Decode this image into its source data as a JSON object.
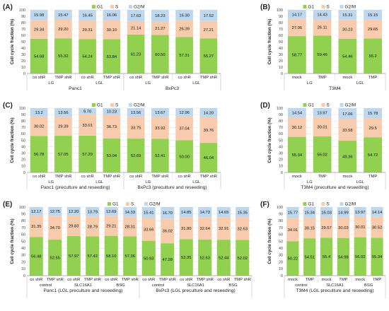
{
  "colors": {
    "G1": "#92d050",
    "S": "#f8cbad",
    "G2/M": "#bdd7ee"
  },
  "chart_data": [
    {
      "panel": "(A)",
      "type": "bar",
      "stacked": true,
      "ylabel": "Cell cycle fraction (%)",
      "ylim": [
        0,
        100
      ],
      "yticks": [
        "0",
        "10",
        "20",
        "30",
        "40",
        "50",
        "60",
        "70",
        "80",
        "90",
        "100"
      ],
      "legend": [
        "G1",
        "S",
        "G2/M"
      ],
      "categories": [
        "co shR",
        "TMP shR",
        "co shR",
        "TMP shR",
        "co shR",
        "TMP shR",
        "co shR",
        "TMP shR"
      ],
      "series": [
        {
          "name": "G1",
          "values": [
            54.68,
            55.32,
            54.24,
            53.84,
            61.23,
            60.5,
            57.31,
            55.27
          ]
        },
        {
          "name": "S",
          "values": [
            29.34,
            29.2,
            29.31,
            30.1,
            21.14,
            21.27,
            26.39,
            27.21
          ]
        },
        {
          "name": "G2/M",
          "values": [
            15.98,
            15.47,
            16.45,
            16.06,
            17.63,
            18.23,
            16.3,
            17.52
          ]
        }
      ],
      "labels": {
        "G1": [
          "54.68",
          "55.32",
          "54.24",
          "53.84",
          "61.23",
          "60.50",
          "57.31",
          "55.27"
        ],
        "S": [
          "29.34",
          "29.20",
          "29.31",
          "30.10",
          "21.14",
          "21.27",
          "26.39",
          "27.21"
        ],
        "G2/M": [
          "15.98",
          "15.47",
          "16.45",
          "16.06",
          "17.63",
          "18.23",
          "16.30",
          "17.52"
        ]
      },
      "subgroups": [
        "LG",
        "LGL",
        "LG",
        "LGL"
      ],
      "groups": [
        "Panc1",
        "BxPc3"
      ]
    },
    {
      "panel": "(B)",
      "type": "bar",
      "stacked": true,
      "ylabel": "Cell cycle fraction (%)",
      "ylim": [
        0,
        100
      ],
      "yticks": [
        "0",
        "10",
        "20",
        "30",
        "40",
        "50",
        "60",
        "70",
        "80",
        "90",
        "100"
      ],
      "legend": [
        "G1",
        "S",
        "G2/M"
      ],
      "categories": [
        "mock",
        "TMP",
        "mock",
        "TMP"
      ],
      "series": [
        {
          "name": "G1",
          "values": [
            58.77,
            59.46,
            54.46,
            55.2
          ]
        },
        {
          "name": "S",
          "values": [
            27.06,
            26.11,
            30.23,
            29.65
          ]
        },
        {
          "name": "G2/M",
          "values": [
            14.17,
            14.43,
            15.31,
            15.15
          ]
        }
      ],
      "labels": {
        "G1": [
          "58.77",
          "59.46",
          "54.46",
          "55.2"
        ],
        "S": [
          "27.06",
          "26.11",
          "30.23",
          "29.65"
        ],
        "G2/M": [
          "14.17",
          "14.43",
          "15.31",
          "15.15"
        ]
      },
      "subgroups": [
        "LG",
        "LGL"
      ],
      "groups": [
        "T3M4"
      ]
    },
    {
      "panel": "(C)",
      "type": "bar",
      "stacked": true,
      "ylabel": "Cell cycle fraction (%)",
      "ylim": [
        0,
        100
      ],
      "yticks": [
        "0",
        "10",
        "20",
        "30",
        "40",
        "50",
        "60",
        "70",
        "80",
        "90",
        "100"
      ],
      "legend": [
        "G1",
        "S",
        "G2/M"
      ],
      "categories": [
        "co shR",
        "TMP shR",
        "co shR",
        "TMP shR",
        "co shR",
        "TMP shR",
        "co shR",
        "TMP shR"
      ],
      "series": [
        {
          "name": "G1",
          "values": [
            56.78,
            57.05,
            57.29,
            53.04,
            52.69,
            52.41,
            50.0,
            46.04
          ]
        },
        {
          "name": "S",
          "values": [
            30.02,
            29.39,
            33.01,
            36.73,
            33.75,
            33.92,
            37.04,
            39.76
          ]
        },
        {
          "name": "G2/M",
          "values": [
            13.2,
            13.56,
            9.7,
            10.23,
            13.56,
            13.67,
            12.96,
            14.2
          ]
        }
      ],
      "labels": {
        "G1": [
          "56.78",
          "57.05",
          "57.29",
          "53.04",
          "52.69",
          "52.41",
          "50.00",
          "46.04"
        ],
        "S": [
          "30.02",
          "29.39",
          "33.01",
          "36.73",
          "33.75",
          "33.92",
          "37.04",
          "39.76"
        ],
        "G2/M": [
          "13.2",
          "13.56",
          "9.70",
          "10.23",
          "13.56",
          "13.67",
          "12.96",
          "14.20"
        ]
      },
      "subgroups": [
        "LG",
        "LGL",
        "LG",
        "LGL"
      ],
      "groups": [
        "Panc1 (preculture and reseeding)",
        "BxPc3 (preculture and reseeding)"
      ]
    },
    {
      "panel": "(D)",
      "type": "bar",
      "stacked": true,
      "ylabel": "Cell cycle fraction (%)",
      "ylim": [
        0,
        100
      ],
      "yticks": [
        "0",
        "10",
        "20",
        "30",
        "40",
        "50",
        "60",
        "70",
        "80",
        "90",
        "100"
      ],
      "legend": [
        "G1",
        "S",
        "G2/M"
      ],
      "categories": [
        "mock",
        "TMP",
        "mock",
        "TMP"
      ],
      "series": [
        {
          "name": "G1",
          "values": [
            55.34,
            56.02,
            49.36,
            54.72
          ]
        },
        {
          "name": "S",
          "values": [
            30.12,
            30.01,
            33.58,
            29.5
          ]
        },
        {
          "name": "G2/M",
          "values": [
            14.54,
            13.97,
            17.06,
            15.78
          ]
        }
      ],
      "labels": {
        "G1": [
          "55.34",
          "56.02",
          "49.36",
          "54.72"
        ],
        "S": [
          "30.12",
          "30.01",
          "33.58",
          "29.5"
        ],
        "G2/M": [
          "14.54",
          "13.97",
          "17.06",
          "15.78"
        ]
      },
      "subgroups": [
        "LG",
        "LGL"
      ],
      "groups": [
        "T3M4 (preculture and reseeding)"
      ]
    },
    {
      "panel": "(E)",
      "type": "bar",
      "stacked": true,
      "ylabel": "Cell cycle fraction (%)",
      "ylim": [
        0,
        100
      ],
      "yticks": [
        "0",
        "10",
        "20",
        "30",
        "40",
        "50",
        "60",
        "70",
        "80",
        "90",
        "100"
      ],
      "legend": [
        "G1",
        "S",
        "G2/M"
      ],
      "categories": [
        "co shR",
        "TMP shR",
        "co shR",
        "TMP shR",
        "co shR",
        "TMP shR",
        "co shR",
        "TMP shR",
        "co shR",
        "TMP shR",
        "co shR",
        "TMP shR"
      ],
      "series": [
        {
          "name": "G1",
          "values": [
            56.48,
            52.55,
            57.97,
            57.42,
            58.1,
            57.36,
            50.93,
            47.28,
            53.35,
            52.63,
            52.44,
            52.02
          ]
        },
        {
          "name": "S",
          "values": [
            31.35,
            34.7,
            29.83,
            28.79,
            29.21,
            28.31,
            33.66,
            36.02,
            31.8,
            32.64,
            32.91,
            32.63
          ]
        },
        {
          "name": "G2/M",
          "values": [
            12.17,
            12.75,
            12.2,
            13.79,
            12.69,
            14.33,
            15.41,
            16.7,
            14.85,
            14.73,
            14.65,
            15.35
          ]
        }
      ],
      "labels": {
        "G1": [
          "56.48",
          "52.55",
          "57.97",
          "57.42",
          "58.10",
          "57.36",
          "50.93",
          "47.28",
          "53.35",
          "52.63",
          "52.44",
          "52.02"
        ],
        "S": [
          "31.35",
          "34.70",
          "29.83",
          "28.79",
          "29.21",
          "28.31",
          "33.66",
          "36.02",
          "31.80",
          "32.64",
          "32.91",
          "32.63"
        ],
        "G2/M": [
          "12.17",
          "12.75",
          "12.20",
          "13.79",
          "12.69",
          "14.33",
          "15.41",
          "16.70",
          "14.85",
          "14.73",
          "14.65",
          "15.35"
        ]
      },
      "subgroups": [
        "control",
        "SLC16A1",
        "BSG",
        "control",
        "SLC16A1",
        "BSG"
      ],
      "groups": [
        "Panc1 (LGL preculture and reseeding)",
        "BxPc3 (LGL preculture and reseeding)"
      ]
    },
    {
      "panel": "(F)",
      "type": "bar",
      "stacked": true,
      "ylabel": "Cell cycle fraction (%)",
      "ylim": [
        0,
        100
      ],
      "yticks": [
        "0",
        "10",
        "20",
        "30",
        "40",
        "50",
        "60",
        "70",
        "80",
        "90",
        "100"
      ],
      "legend": [
        "G1",
        "S",
        "G2/M"
      ],
      "categories": [
        "mock",
        "TMP",
        "mock",
        "TMP",
        "mock",
        "TMP"
      ],
      "series": [
        {
          "name": "G1",
          "values": [
            50.22,
            54.51,
            55.4,
            54.98,
            56.02,
            55.34
          ]
        },
        {
          "name": "S",
          "values": [
            34.01,
            30.15,
            29.57,
            30.03,
            30.01,
            30.52
          ]
        },
        {
          "name": "G2/M",
          "values": [
            15.77,
            15.34,
            15.03,
            14.99,
            13.97,
            14.14
          ]
        }
      ],
      "labels": {
        "G1": [
          "50.22",
          "54.51",
          "55.4",
          "54.98",
          "56.02",
          "55.34"
        ],
        "S": [
          "34.01",
          "30.15",
          "29.57",
          "30.03",
          "30.01",
          "30.52"
        ],
        "G2/M": [
          "15.77",
          "15.34",
          "15.03",
          "14.99",
          "13.97",
          "14.14"
        ]
      },
      "subgroups": [
        "control",
        "SLC16A1",
        "BSG"
      ],
      "groups": [
        "T3M4 (LGL preculture and reseeding)"
      ]
    }
  ]
}
